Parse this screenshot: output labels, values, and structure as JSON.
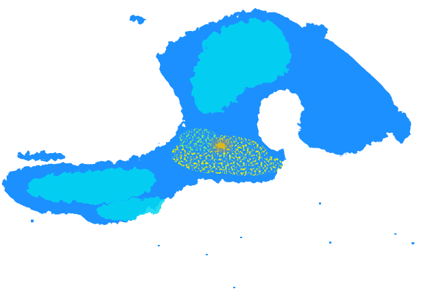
{
  "colors": {
    "background": "#ffffff",
    "light_echo": "#1e90ff",
    "medium_echo": "#00d8f0",
    "moderate_echo": "#40e8c0",
    "heavy_echo": "#e8f000",
    "intense_echo": "#ff9000"
  }
}
